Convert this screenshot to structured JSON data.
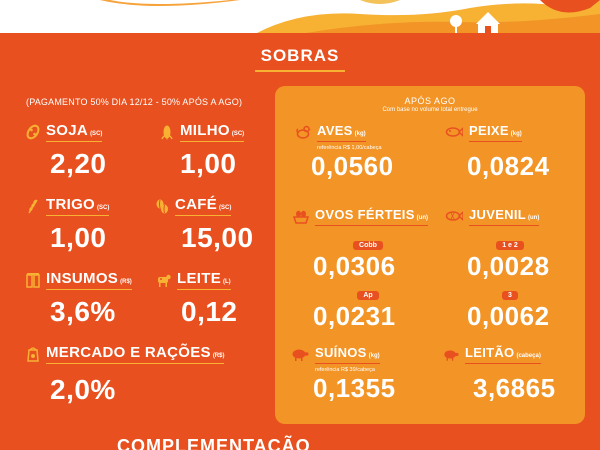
{
  "header": {
    "title": "SOBRAS",
    "note": "(PAGAMENTO 50% DIA 12/12 - 50% APÓS A AGO)"
  },
  "left_items": [
    {
      "key": "soja",
      "label": "SOJA",
      "unit": "(SC)",
      "value": "2,20",
      "icon": "soy-icon"
    },
    {
      "key": "milho",
      "label": "MILHO",
      "unit": "(SC)",
      "value": "1,00",
      "icon": "corn-icon"
    },
    {
      "key": "trigo",
      "label": "TRIGO",
      "unit": "(SC)",
      "value": "1,00",
      "icon": "wheat-icon"
    },
    {
      "key": "cafe",
      "label": "CAFÉ",
      "unit": "(SC)",
      "value": "15,00",
      "icon": "coffee-bean-icon"
    },
    {
      "key": "insumos",
      "label": "INSUMOS",
      "unit": "(R$)",
      "value": "3,6%",
      "icon": "supplies-icon"
    },
    {
      "key": "leite",
      "label": "LEITE",
      "unit": "(L)",
      "value": "0,12",
      "icon": "cow-icon"
    },
    {
      "key": "mercado",
      "label": "MERCADO E RAÇÕES",
      "unit": "(R$)",
      "value": "2,0%",
      "icon": "feed-bag-icon"
    }
  ],
  "panel": {
    "title": "APÓS AGO",
    "subtitle": "Com base no volume total entregue",
    "items": {
      "aves": {
        "label": "AVES",
        "unit": "(kg)",
        "ref": "referência R$ 1,00/cabeça",
        "value": "0,0560",
        "icon": "chicken-icon"
      },
      "peixe": {
        "label": "PEIXE",
        "unit": "(kg)",
        "value": "0,0824",
        "icon": "fish-icon"
      },
      "ovos": {
        "label": "OVOS FÉRTEIS",
        "unit": "(un)",
        "icon": "egg-basket-icon",
        "tags": [
          "Cobb",
          "Ap"
        ],
        "values": [
          "0,0306",
          "0,0231"
        ]
      },
      "juvenil": {
        "label": "JUVENIL",
        "unit": "(un)",
        "icon": "small-fish-icon",
        "tags": [
          "1 e 2",
          "3"
        ],
        "values": [
          "0,0028",
          "0,0062"
        ]
      },
      "suinos": {
        "label": "SUÍNOS",
        "unit": "(kg)",
        "ref": "referência R$ 39/cabeça",
        "value": "0,1355",
        "icon": "pig-icon"
      },
      "leitao": {
        "label": "LEITÃO",
        "unit": "(cabeça)",
        "value": "3,6865",
        "icon": "piglet-icon"
      }
    }
  },
  "footer": {
    "next_section": "COMPLEMENTAÇÃO"
  },
  "colors": {
    "background": "#e8501f",
    "panel": "#f29426",
    "accent": "#f7b133"
  }
}
